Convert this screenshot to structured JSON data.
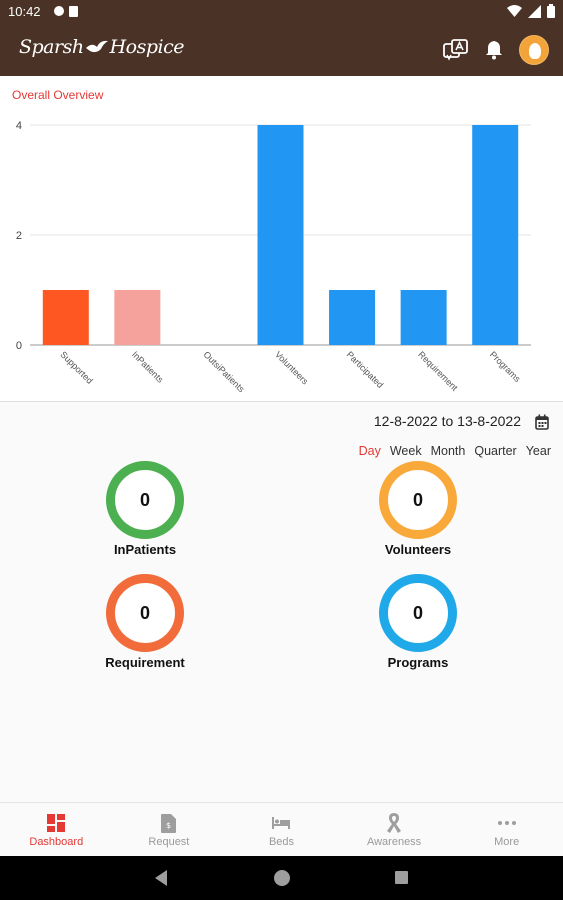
{
  "status_bar": {
    "time": "10:42"
  },
  "app_bar": {
    "logo_left": "Sparsh",
    "logo_right": "Hospice",
    "icons": [
      "translate-icon",
      "bell-icon",
      "avatar"
    ]
  },
  "chart_data": {
    "type": "bar",
    "title": "Overall Overview",
    "categories": [
      "Supported",
      "InPatients",
      "OutsiPatients",
      "Volunteers",
      "Participated",
      "Requirement",
      "Programs"
    ],
    "values": [
      1,
      1,
      0,
      4,
      1,
      1,
      4
    ],
    "colors": [
      "#ff5722",
      "#f4a29b",
      "#2196f3",
      "#2196f3",
      "#2196f3",
      "#2196f3",
      "#2196f3"
    ],
    "yticks": [
      0,
      2,
      4
    ],
    "ylim": [
      0,
      4
    ],
    "grid": true
  },
  "date_range": {
    "text": "12-8-2022 to 13-8-2022"
  },
  "period_tabs": [
    {
      "label": "Day",
      "active": true
    },
    {
      "label": "Week",
      "active": false
    },
    {
      "label": "Month",
      "active": false
    },
    {
      "label": "Quarter",
      "active": false
    },
    {
      "label": "Year",
      "active": false
    }
  ],
  "stats": [
    {
      "value": "0",
      "label": "InPatients",
      "color": "#4caf50"
    },
    {
      "value": "0",
      "label": "Volunteers",
      "color": "#f9a83a"
    },
    {
      "value": "0",
      "label": "Requirement",
      "color": "#f26b3a"
    },
    {
      "value": "0",
      "label": "Programs",
      "color": "#1fa9e9"
    }
  ],
  "bottom_nav": [
    {
      "label": "Dashboard",
      "icon": "dashboard-icon",
      "active": true
    },
    {
      "label": "Request",
      "icon": "request-icon",
      "active": false
    },
    {
      "label": "Beds",
      "icon": "bed-icon",
      "active": false
    },
    {
      "label": "Awareness",
      "icon": "ribbon-icon",
      "active": false
    },
    {
      "label": "More",
      "icon": "more-icon",
      "active": false
    }
  ]
}
